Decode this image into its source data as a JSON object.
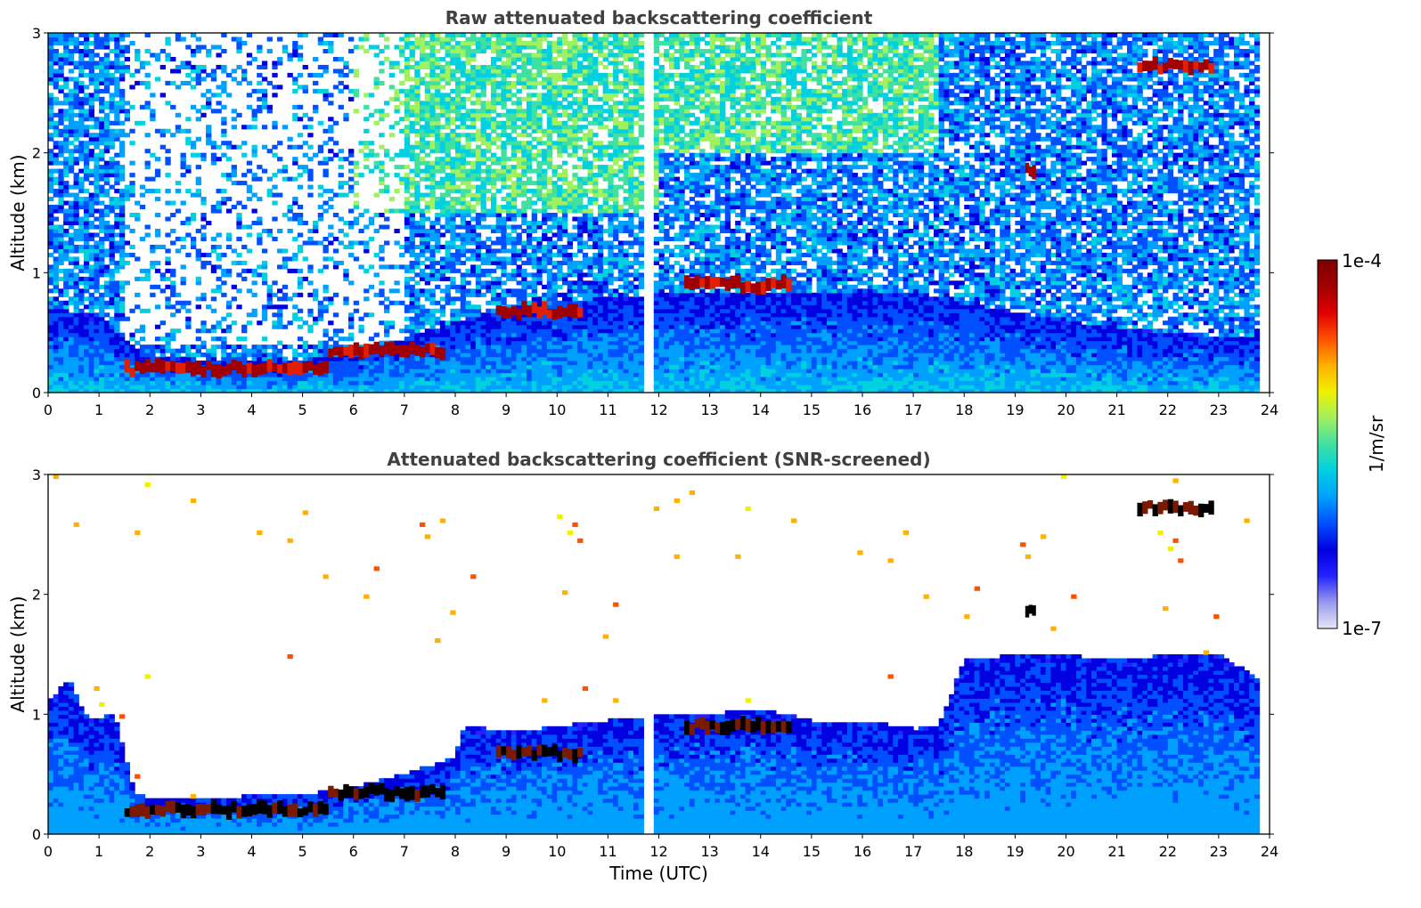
{
  "chart_data": [
    {
      "type": "heatmap",
      "title": "Raw attenuated backscattering coefficient",
      "xlabel": "",
      "ylabel": "Altitude (km)",
      "xlim": [
        0,
        24
      ],
      "ylim": [
        0,
        3
      ],
      "xticks": [
        0,
        1,
        2,
        3,
        4,
        5,
        6,
        7,
        8,
        9,
        10,
        11,
        12,
        13,
        14,
        15,
        16,
        17,
        18,
        19,
        20,
        21,
        22,
        23,
        24
      ],
      "yticks": [
        0,
        1,
        2,
        3
      ],
      "data_gap_hours": [
        11.65,
        11.95
      ],
      "boundary_layer_top_km": {
        "x": [
          0.0,
          1.0,
          1.5,
          2.0,
          3.0,
          4.0,
          5.0,
          5.5,
          6.0,
          7.0,
          8.0,
          9.0,
          10.0,
          11.0,
          11.6,
          12.0,
          14.0,
          17.0,
          18.0,
          20.0,
          22.0,
          23.8
        ],
        "y": [
          0.7,
          0.65,
          0.45,
          0.3,
          0.28,
          0.27,
          0.27,
          0.3,
          0.35,
          0.45,
          0.6,
          0.7,
          0.75,
          0.8,
          0.8,
          0.85,
          0.85,
          0.85,
          0.75,
          0.6,
          0.5,
          0.45
        ]
      },
      "cloud_features": [
        {
          "x_range": [
            1.5,
            5.5
          ],
          "y_km": 0.2,
          "level": "high"
        },
        {
          "x_range": [
            5.5,
            7.8
          ],
          "y_km": 0.35,
          "level": "high"
        },
        {
          "x_range": [
            8.8,
            10.5
          ],
          "y_km": 0.68,
          "level": "high"
        },
        {
          "x_range": [
            12.5,
            14.6
          ],
          "y_km": 0.9,
          "level": "high"
        },
        {
          "x_range": [
            19.2,
            19.4
          ],
          "y_km": 1.85,
          "level": "high"
        },
        {
          "x_range": [
            21.4,
            22.9
          ],
          "y_km": 2.72,
          "level": "high"
        }
      ]
    },
    {
      "type": "heatmap",
      "title": "Attenuated backscattering coefficient (SNR-screened)",
      "xlabel": "Time (UTC)",
      "ylabel": "Altitude (km)",
      "xlim": [
        0,
        24
      ],
      "ylim": [
        0,
        3
      ],
      "xticks": [
        0,
        1,
        2,
        3,
        4,
        5,
        6,
        7,
        8,
        9,
        10,
        11,
        12,
        13,
        14,
        15,
        16,
        17,
        18,
        19,
        20,
        21,
        22,
        23,
        24
      ],
      "yticks": [
        0,
        1,
        2,
        3
      ],
      "data_gap_hours": [
        11.65,
        11.95
      ],
      "signal_top_km": {
        "x": [
          0.0,
          0.4,
          0.8,
          1.3,
          1.7,
          2.0,
          3.0,
          4.0,
          5.0,
          6.0,
          7.0,
          8.0,
          8.2,
          9.0,
          10.0,
          11.0,
          11.6,
          12.0,
          13.0,
          14.0,
          15.0,
          16.0,
          17.0,
          17.5,
          18.0,
          19.0,
          20.0,
          21.0,
          22.0,
          23.0,
          23.8
        ],
        "y": [
          1.1,
          1.3,
          0.95,
          1.0,
          0.35,
          0.3,
          0.3,
          0.32,
          0.33,
          0.4,
          0.5,
          0.65,
          0.92,
          0.85,
          0.9,
          0.95,
          0.98,
          1.0,
          1.0,
          1.05,
          0.95,
          0.95,
          0.88,
          0.9,
          1.45,
          1.5,
          1.5,
          1.45,
          1.5,
          1.5,
          1.3
        ]
      },
      "cloud_features": [
        {
          "x_range": [
            1.5,
            5.5
          ],
          "y_km": 0.2,
          "level": "saturated"
        },
        {
          "x_range": [
            5.5,
            7.8
          ],
          "y_km": 0.35,
          "level": "saturated"
        },
        {
          "x_range": [
            8.8,
            10.5
          ],
          "y_km": 0.68,
          "level": "saturated"
        },
        {
          "x_range": [
            12.5,
            14.6
          ],
          "y_km": 0.9,
          "level": "saturated"
        },
        {
          "x_range": [
            19.2,
            19.4
          ],
          "y_km": 1.85,
          "level": "saturated"
        },
        {
          "x_range": [
            21.4,
            22.9
          ],
          "y_km": 2.72,
          "level": "saturated"
        }
      ]
    }
  ],
  "colorbar": {
    "min_label": "1e-7",
    "max_label": "1e-4",
    "unit_label": "1/m/sr",
    "colormap": [
      "#e6e6f7",
      "#9999ee",
      "#2222ff",
      "#0000e0",
      "#0050ff",
      "#00a0ff",
      "#00d0e0",
      "#40e0a0",
      "#a0f060",
      "#f0f000",
      "#ffb000",
      "#ff5000",
      "#e00000",
      "#a00000",
      "#800000"
    ]
  }
}
